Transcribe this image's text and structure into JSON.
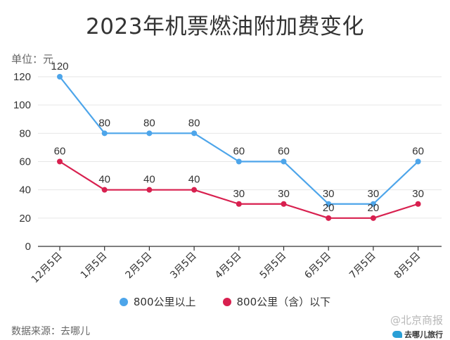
{
  "header": {
    "title": "2023年机票燃油附加费变化",
    "unit": "单位：元"
  },
  "footer": {
    "source": "数据来源：去哪儿",
    "watermark": "@北京商报",
    "watermark_sub": "去哪儿旅行"
  },
  "colors": {
    "series_above": "#4da5ea",
    "series_below": "#d8204f",
    "axis": "#333333",
    "grid": "#e6e6e6"
  },
  "chart_data": {
    "type": "line",
    "title": "2023年机票燃油附加费变化",
    "ylabel": "单位：元",
    "ylim": [
      0,
      120
    ],
    "yticks": [
      0,
      20,
      40,
      60,
      80,
      100,
      120
    ],
    "grid": true,
    "legend_position": "bottom",
    "categories": [
      "12月5日",
      "1月5日",
      "2月5日",
      "3月5日",
      "4月5日",
      "5月5日",
      "6月5日",
      "7月5日",
      "8月5日"
    ],
    "series": [
      {
        "name": "800公里以上",
        "values": [
          120,
          80,
          80,
          80,
          60,
          60,
          30,
          30,
          60
        ]
      },
      {
        "name": "800公里（含）以下",
        "values": [
          60,
          40,
          40,
          40,
          30,
          30,
          20,
          20,
          30
        ]
      }
    ]
  }
}
